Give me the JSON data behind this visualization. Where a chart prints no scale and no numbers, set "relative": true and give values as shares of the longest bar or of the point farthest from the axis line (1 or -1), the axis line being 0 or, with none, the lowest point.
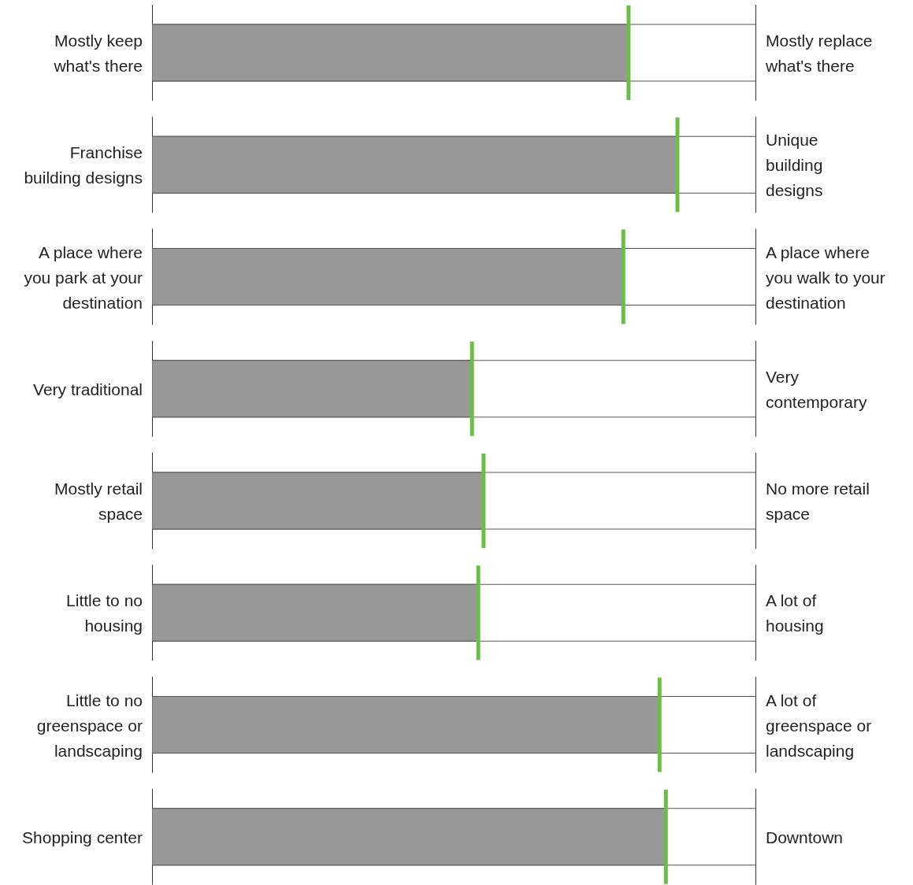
{
  "chart_data": {
    "type": "bar",
    "orientation": "horizontal",
    "relative": true,
    "categories": [
      "Mostly keep\nwhat's there",
      "Franchise\nbuilding designs",
      "A place where\nyou park at your\ndestination",
      "Very traditional",
      "Mostly retail\nspace",
      "Little to no\nhousing",
      "Little to no\ngreenspace or\nlandscaping",
      "Shopping center"
    ],
    "y2_categories": [
      "Mostly replace\nwhat's there",
      "Unique\nbuilding\ndesigns",
      "A place where\nyou walk to your\ndestination",
      "Very\ncontemporary",
      "No more retail\nspace",
      "A lot of\nhousing",
      "A lot of\ngreenspace or\nlandscaping",
      "Downtown"
    ],
    "series": [
      {
        "color": "#999898",
        "values": [
          0.907,
          1,
          0.897,
          0.609,
          0.631,
          0.621,
          0.966,
          0.978
        ]
      }
    ]
  }
}
